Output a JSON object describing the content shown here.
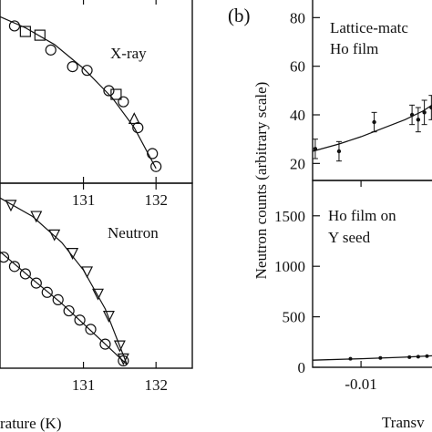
{
  "chart_data": [
    {
      "type": "scatter",
      "title": "",
      "annotation": "X-ray",
      "xlabel": "rature (K)",
      "ylabel": "",
      "xlim": [
        129.85,
        132.5
      ],
      "ylim": [
        0,
        1
      ],
      "x_ticks": [
        "131",
        "132"
      ],
      "x_tick_values": [
        131,
        132
      ],
      "series": [
        {
          "marker": "circle",
          "x": [
            130.05,
            130.55,
            130.85,
            131.05,
            131.35,
            131.55,
            131.75,
            131.95,
            132.0
          ],
          "y": [
            0.85,
            0.72,
            0.63,
            0.61,
            0.5,
            0.44,
            0.3,
            0.16,
            0.09
          ]
        },
        {
          "marker": "square",
          "x": [
            130.2,
            130.4,
            131.45
          ],
          "y": [
            0.82,
            0.8,
            0.48
          ]
        },
        {
          "marker": "triangle",
          "x": [
            131.7
          ],
          "y": [
            0.35
          ]
        }
      ],
      "fit_curve": {
        "x": [
          129.85,
          130.2,
          130.6,
          131.0,
          131.4,
          131.7,
          132.0
        ],
        "y": [
          0.9,
          0.84,
          0.75,
          0.62,
          0.46,
          0.3,
          0.08
        ]
      }
    },
    {
      "type": "scatter",
      "title": "",
      "annotation": "Neutron",
      "xlabel": "rature (K)",
      "ylabel": "",
      "xlim": [
        129.85,
        132.5
      ],
      "ylim": [
        0,
        1
      ],
      "x_ticks": [
        "131",
        "132"
      ],
      "x_tick_values": [
        131,
        132
      ],
      "series": [
        {
          "marker": "triangle-down",
          "x": [
            130.0,
            130.35,
            130.6,
            130.85,
            131.05,
            131.2,
            131.35,
            131.5,
            131.55
          ],
          "y": [
            0.88,
            0.82,
            0.72,
            0.62,
            0.52,
            0.4,
            0.28,
            0.12,
            0.05
          ]
        },
        {
          "marker": "circle",
          "x": [
            129.9,
            130.05,
            130.2,
            130.35,
            130.5,
            130.65,
            130.8,
            130.95,
            131.1,
            131.3,
            131.55
          ],
          "y": [
            0.6,
            0.55,
            0.51,
            0.46,
            0.41,
            0.37,
            0.31,
            0.26,
            0.21,
            0.13,
            0.04
          ]
        }
      ],
      "fit_curves": [
        {
          "x": [
            129.85,
            130.3,
            130.7,
            131.0,
            131.3,
            131.6
          ],
          "y": [
            0.92,
            0.82,
            0.68,
            0.53,
            0.32,
            0.02
          ]
        },
        {
          "x": [
            129.85,
            130.3,
            130.7,
            131.0,
            131.3,
            131.6
          ],
          "y": [
            0.63,
            0.48,
            0.35,
            0.24,
            0.13,
            0.02
          ]
        }
      ]
    },
    {
      "type": "scatter",
      "panel_label": "(b)",
      "title": "",
      "annotation_lines": [
        "Lattice-matc",
        "Ho film"
      ],
      "xlabel": "Transv",
      "ylabel": "Neutron counts (arbitrary scale)",
      "xlim": [
        -0.0155,
        -0.001
      ],
      "ylim": [
        13,
        88
      ],
      "y_ticks": [
        "20",
        "40",
        "60",
        "80"
      ],
      "y_tick_values": [
        20,
        40,
        60,
        80
      ],
      "points": [
        {
          "x": -0.0152,
          "y": 26,
          "err": 4
        },
        {
          "x": -0.0125,
          "y": 25,
          "err": 4
        },
        {
          "x": -0.0085,
          "y": 37,
          "err": 4
        },
        {
          "x": -0.0042,
          "y": 40,
          "err": 4
        },
        {
          "x": -0.0035,
          "y": 38,
          "err": 5
        },
        {
          "x": -0.0028,
          "y": 41,
          "err": 5
        },
        {
          "x": -0.002,
          "y": 43,
          "err": 5
        },
        {
          "x": -0.0012,
          "y": 47,
          "err": 6
        }
      ],
      "fit_curve": {
        "x": [
          -0.0155,
          -0.0125,
          -0.01,
          -0.0075,
          -0.005,
          -0.003,
          -0.0015,
          -0.001
        ],
        "y": [
          25.0,
          28.0,
          31.0,
          34.5,
          38.0,
          41.5,
          45.0,
          46.5
        ]
      }
    },
    {
      "type": "scatter",
      "title": "",
      "annotation_lines": [
        "Ho film on",
        "Y seed"
      ],
      "xlabel": "Transv",
      "ylabel": "Neutron counts (arbitrary scale)",
      "xlim": [
        -0.0155,
        -0.001
      ],
      "ylim": [
        0,
        1850
      ],
      "x_ticks": [
        "-0.01"
      ],
      "x_tick_values": [
        -0.01
      ],
      "y_ticks": [
        "0",
        "500",
        "1000",
        "1500"
      ],
      "y_tick_values": [
        0,
        500,
        1000,
        1500
      ],
      "points": [
        {
          "x": -0.0112,
          "y": 85
        },
        {
          "x": -0.0078,
          "y": 92
        },
        {
          "x": -0.0045,
          "y": 100
        },
        {
          "x": -0.0035,
          "y": 105
        },
        {
          "x": -0.0025,
          "y": 110
        },
        {
          "x": -0.0015,
          "y": 118
        }
      ],
      "fit_curve": {
        "x": [
          -0.0155,
          -0.01,
          -0.005,
          -0.001
        ],
        "y": [
          70,
          85,
          100,
          118
        ]
      }
    }
  ]
}
